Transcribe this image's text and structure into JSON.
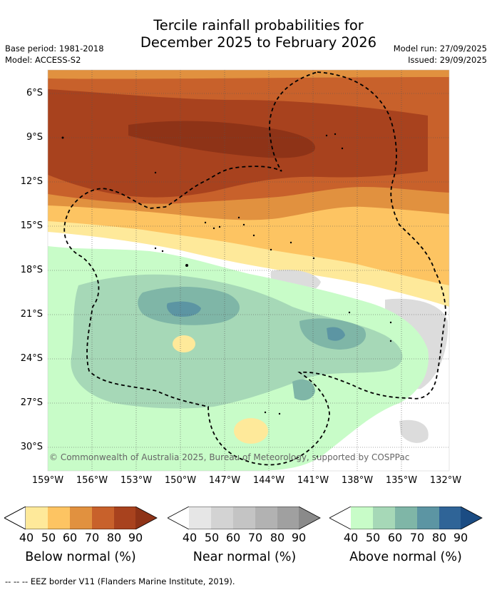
{
  "title_line1": "Tercile rainfall probabilities for",
  "title_line2": "December 2025 to February 2026",
  "base_period": "Base period: 1981-2018",
  "model": "Model: ACCESS-S2",
  "model_run": "Model run: 27/09/2025",
  "issued": "Issued: 29/09/2025",
  "lat_labels": [
    "6°S",
    "9°S",
    "12°S",
    "15°S",
    "18°S",
    "21°S",
    "24°S",
    "27°S",
    "30°S"
  ],
  "lon_labels": [
    "159°W",
    "156°W",
    "153°W",
    "150°W",
    "147°W",
    "144°W",
    "141°W",
    "138°W",
    "135°W",
    "132°W"
  ],
  "copyright": "© Commonwealth of Australia 2025, Bureau of Meteorology, supported by COSPPac",
  "legends": [
    {
      "title": "Below normal (%)",
      "ticks": [
        "40",
        "50",
        "60",
        "70",
        "80",
        "90"
      ],
      "colors": [
        "#fee99a",
        "#fdc462",
        "#e1913f",
        "#c8612b",
        "#a8421e",
        "#8e3317"
      ]
    },
    {
      "title": "Near normal (%)",
      "ticks": [
        "40",
        "50",
        "60",
        "70",
        "80",
        "90"
      ],
      "colors": [
        "#e6e6e6",
        "#d3d3d3",
        "#c4c4c4",
        "#b2b2b2",
        "#a0a0a0",
        "#8a8a8a"
      ]
    },
    {
      "title": "Above normal (%)",
      "ticks": [
        "40",
        "50",
        "60",
        "70",
        "80",
        "90"
      ],
      "colors": [
        "#c8fcc8",
        "#a6d8b7",
        "#7fb6a7",
        "#5c95a3",
        "#2f6497",
        "#1b4c83"
      ]
    }
  ],
  "footnote": "--  --  -- EEZ border V11 (Flanders Marine Institute, 2019)."
}
